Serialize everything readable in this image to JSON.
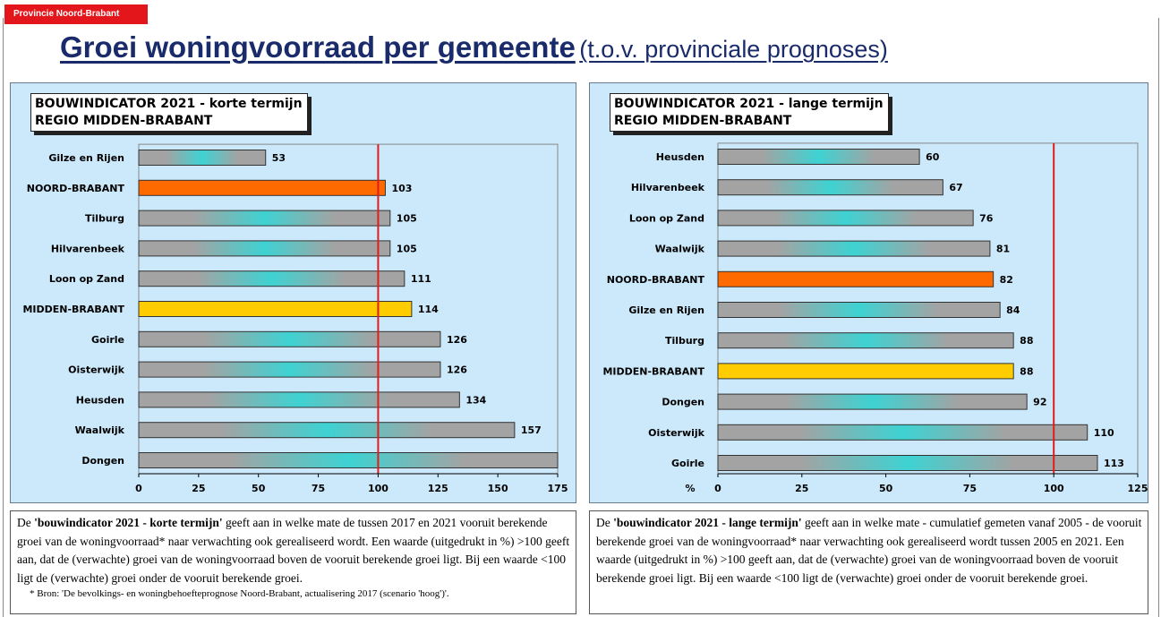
{
  "header": {
    "org": "Provincie Noord-Brabant",
    "title_main": "Groei woningvoorraad per gemeente",
    "title_sub": "(t.o.v. provinciale prognoses)"
  },
  "colors": {
    "bar_base": "#a3a3a3",
    "bar_glow": "#3ed2d2",
    "province_bar": "#ff6a00",
    "region_bar": "#ffcc00",
    "reference_line": "#e21b1b",
    "panel_bg": "#cbe9fb"
  },
  "chart_data": [
    {
      "type": "bar",
      "orientation": "horizontal",
      "title_line1": "BOUWINDICATOR 2021 - korte termijn",
      "title_line2": "REGIO MIDDEN-BRABANT",
      "categories": [
        "Gilze en Rijen",
        "NOORD-BRABANT",
        "Tilburg",
        "Hilvarenbeek",
        "Loon op Zand",
        "MIDDEN-BRABANT",
        "Goirle",
        "Oisterwijk",
        "Heusden",
        "Waalwijk",
        "Dongen"
      ],
      "values": [
        53,
        103,
        105,
        105,
        111,
        114,
        126,
        126,
        134,
        157,
        175
      ],
      "value_labels": [
        "53",
        "103",
        "105",
        "105",
        "111",
        "114",
        "126",
        "126",
        "134",
        "157",
        ""
      ],
      "highlight": {
        "NOORD-BRABANT": "province",
        "MIDDEN-BRABANT": "region"
      },
      "xlim": [
        0,
        175
      ],
      "xticks": [
        0,
        25,
        50,
        75,
        100,
        125,
        150,
        175
      ],
      "xlabel": "",
      "reference_line": 100
    },
    {
      "type": "bar",
      "orientation": "horizontal",
      "title_line1": "BOUWINDICATOR  2021 - lange termijn",
      "title_line2": "REGIO MIDDEN-BRABANT",
      "categories": [
        "Heusden",
        "Hilvarenbeek",
        "Loon op Zand",
        "Waalwijk",
        "NOORD-BRABANT",
        "Gilze en Rijen",
        "Tilburg",
        "MIDDEN-BRABANT",
        "Dongen",
        "Oisterwijk",
        "Goirle"
      ],
      "values": [
        60,
        67,
        76,
        81,
        82,
        84,
        88,
        88,
        92,
        110,
        113
      ],
      "value_labels": [
        "60",
        "67",
        "76",
        "81",
        "82",
        "84",
        "88",
        "88",
        "92",
        "110",
        "113"
      ],
      "highlight": {
        "NOORD-BRABANT": "province",
        "MIDDEN-BRABANT": "region"
      },
      "xlim": [
        0,
        125
      ],
      "xticks": [
        0,
        25,
        50,
        75,
        100,
        125
      ],
      "xlabel": "%",
      "reference_line": 100
    }
  ],
  "notes": {
    "left": {
      "p1_prefix": "De ",
      "p1_bold": "'bouwindicator 2021 - korte termijn'",
      "p1_rest": " geeft aan in welke mate de tussen 2017 en 2021 vooruit berekende groei van de woningvoorraad* naar verwachting ook gerealiseerd wordt. Een waarde (uitgedrukt in %) >100 geeft aan, dat de (verwachte) groei van de woningvoorraad boven de vooruit berekende groei ligt.  Bij een waarde <100 ligt de (verwachte) groei onder de vooruit berekende groei.",
      "source": "* Bron: 'De bevolkings- en woningbehoefteprognose Noord-Brabant, actualisering 2017 (scenario 'hoog')'."
    },
    "right": {
      "p1_prefix": "De ",
      "p1_bold": "'bouwindicator 2021 - lange termijn'",
      "p1_rest": " geeft aan in welke mate - cumulatief gemeten vanaf 2005 - de vooruit berekende groei van de woningvoorraad* naar verwachting ook gerealiseerd wordt tussen 2005 en 2021. Een waarde (uitgedrukt in %) >100 geeft aan, dat de (verwachte) groei van de woningvoorraad boven de vooruit berekende groei ligt.  Bij een waarde <100 ligt de (verwachte) groei onder de vooruit berekende groei."
    }
  }
}
